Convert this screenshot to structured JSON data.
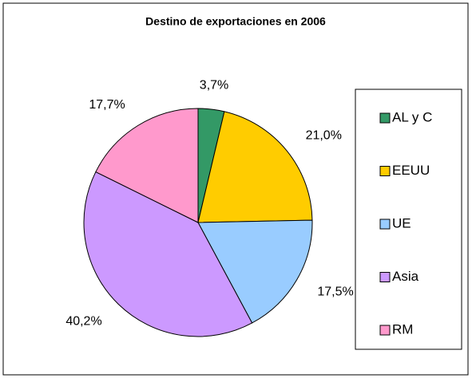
{
  "chart_data": {
    "type": "pie",
    "title": "Destino de exportaciones en 2006",
    "categories": [
      "AL y C",
      "EEUU",
      "UE",
      "Asia",
      "RM"
    ],
    "values": [
      3.7,
      21.0,
      17.5,
      40.2,
      17.7
    ],
    "value_labels": [
      "3,7%",
      "21,0%",
      "17,5%",
      "40,2%",
      "17,7%"
    ],
    "colors": [
      "#339966",
      "#FFCC00",
      "#99CCFF",
      "#CC99FF",
      "#FF99CC"
    ],
    "legend": "right"
  }
}
